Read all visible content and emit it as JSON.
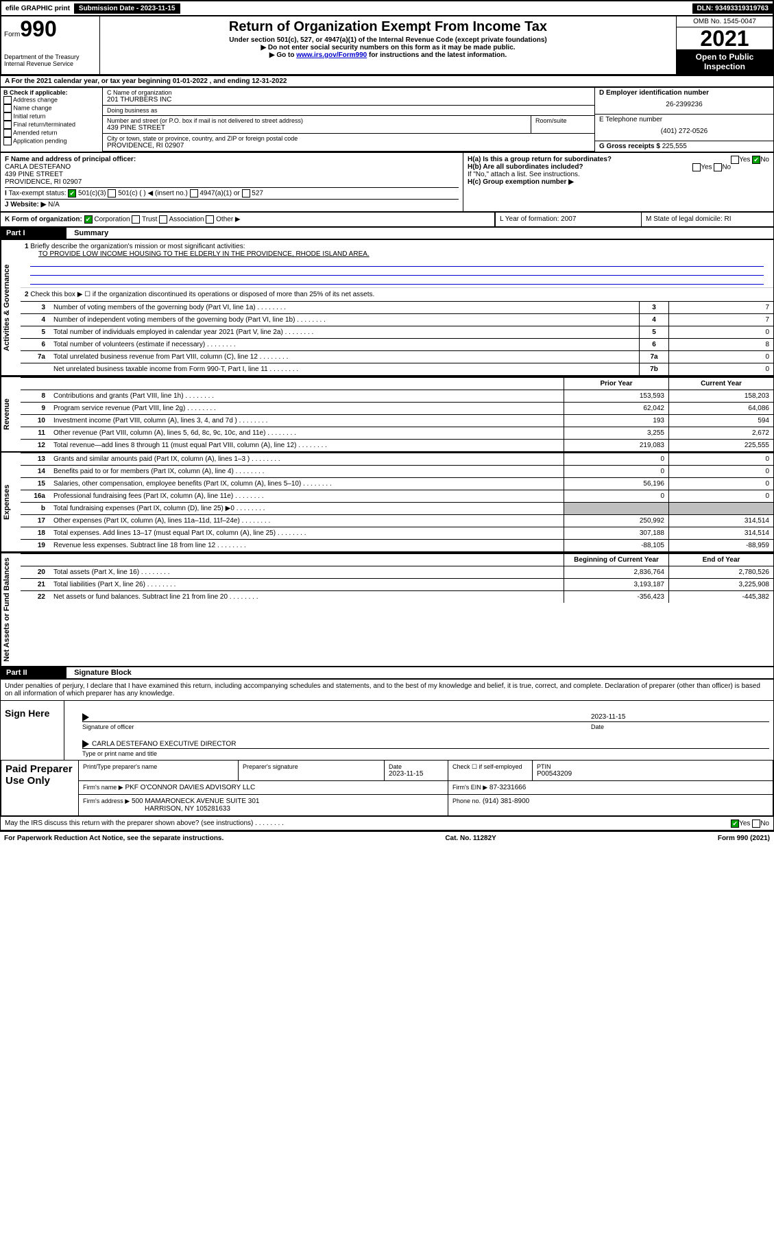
{
  "topbar": {
    "efile": "efile GRAPHIC print",
    "submission": "Submission Date - 2023-11-15",
    "dln": "DLN: 93493319319763"
  },
  "header": {
    "form_prefix": "Form",
    "form_num": "990",
    "dept": "Department of the Treasury Internal Revenue Service",
    "title": "Return of Organization Exempt From Income Tax",
    "sub1": "Under section 501(c), 527, or 4947(a)(1) of the Internal Revenue Code (except private foundations)",
    "sub2": "▶ Do not enter social security numbers on this form as it may be made public.",
    "sub3_pre": "▶ Go to ",
    "sub3_link": "www.irs.gov/Form990",
    "sub3_post": " for instructions and the latest information.",
    "omb": "OMB No. 1545-0047",
    "year": "2021",
    "open": "Open to Public Inspection"
  },
  "rowA": "A For the 2021 calendar year, or tax year beginning 01-01-2022   , and ending 12-31-2022",
  "checkB": {
    "title": "B Check if applicable:",
    "opts": [
      "Address change",
      "Name change",
      "Initial return",
      "Final return/terminated",
      "Amended return",
      "Application pending"
    ]
  },
  "colC": {
    "name_label": "C Name of organization",
    "name": "201 THURBERS INC",
    "dba_label": "Doing business as",
    "dba": "",
    "addr_label": "Number and street (or P.O. box if mail is not delivered to street address)",
    "room_label": "Room/suite",
    "addr": "439 PINE STREET",
    "city_label": "City or town, state or province, country, and ZIP or foreign postal code",
    "city": "PROVIDENCE, RI  02907"
  },
  "colD": {
    "d_label": "D Employer identification number",
    "d_val": "26-2399236",
    "e_label": "E Telephone number",
    "e_val": "(401) 272-0526",
    "g_label": "G Gross receipts $",
    "g_val": "225,555"
  },
  "rowF": {
    "f_label": "F Name and address of principal officer:",
    "f_name": "CARLA DESTEFANO",
    "f_addr1": "439 PINE STREET",
    "f_addr2": "PROVIDENCE, RI  02907",
    "ha": "H(a)  Is this a group return for subordinates?",
    "hb": "H(b)  Are all subordinates included?",
    "hb_note": "If \"No,\" attach a list. See instructions.",
    "hc": "H(c)  Group exemption number ▶"
  },
  "rowI": {
    "label": "Tax-exempt status:",
    "opts": [
      "501(c)(3)",
      "501(c) (  ) ◀ (insert no.)",
      "4947(a)(1) or",
      "527"
    ]
  },
  "rowJ": {
    "label": "J  Website: ▶",
    "val": "N/A"
  },
  "rowK": {
    "label": "K Form of organization:",
    "opts": [
      "Corporation",
      "Trust",
      "Association",
      "Other ▶"
    ],
    "l": "L Year of formation: 2007",
    "m": "M State of legal domicile: RI"
  },
  "part1": {
    "header": "Part I",
    "title": "Summary",
    "line1": "Briefly describe the organization's mission or most significant activities:",
    "mission": "TO PROVIDE LOW INCOME HOUSING TO THE ELDERLY IN THE PROVIDENCE, RHODE ISLAND AREA.",
    "line2": "Check this box ▶ ☐ if the organization discontinued its operations or disposed of more than 25% of its net assets.",
    "sections": {
      "gov": "Activities & Governance",
      "rev": "Revenue",
      "exp": "Expenses",
      "net": "Net Assets or Fund Balances"
    },
    "col_prior": "Prior Year",
    "col_curr": "Current Year",
    "col_boy": "Beginning of Current Year",
    "col_eoy": "End of Year",
    "lines_gov": [
      {
        "n": "3",
        "t": "Number of voting members of the governing body (Part VI, line 1a)",
        "box": "3",
        "v": "7"
      },
      {
        "n": "4",
        "t": "Number of independent voting members of the governing body (Part VI, line 1b)",
        "box": "4",
        "v": "7"
      },
      {
        "n": "5",
        "t": "Total number of individuals employed in calendar year 2021 (Part V, line 2a)",
        "box": "5",
        "v": "0"
      },
      {
        "n": "6",
        "t": "Total number of volunteers (estimate if necessary)",
        "box": "6",
        "v": "8"
      },
      {
        "n": "7a",
        "t": "Total unrelated business revenue from Part VIII, column (C), line 12",
        "box": "7a",
        "v": "0"
      },
      {
        "n": "",
        "t": "Net unrelated business taxable income from Form 990-T, Part I, line 11",
        "box": "7b",
        "v": "0"
      }
    ],
    "lines_rev": [
      {
        "n": "8",
        "t": "Contributions and grants (Part VIII, line 1h)",
        "p": "153,593",
        "c": "158,203"
      },
      {
        "n": "9",
        "t": "Program service revenue (Part VIII, line 2g)",
        "p": "62,042",
        "c": "64,086"
      },
      {
        "n": "10",
        "t": "Investment income (Part VIII, column (A), lines 3, 4, and 7d )",
        "p": "193",
        "c": "594"
      },
      {
        "n": "11",
        "t": "Other revenue (Part VIII, column (A), lines 5, 6d, 8c, 9c, 10c, and 11e)",
        "p": "3,255",
        "c": "2,672"
      },
      {
        "n": "12",
        "t": "Total revenue—add lines 8 through 11 (must equal Part VIII, column (A), line 12)",
        "p": "219,083",
        "c": "225,555"
      }
    ],
    "lines_exp": [
      {
        "n": "13",
        "t": "Grants and similar amounts paid (Part IX, column (A), lines 1–3 )",
        "p": "0",
        "c": "0"
      },
      {
        "n": "14",
        "t": "Benefits paid to or for members (Part IX, column (A), line 4)",
        "p": "0",
        "c": "0"
      },
      {
        "n": "15",
        "t": "Salaries, other compensation, employee benefits (Part IX, column (A), lines 5–10)",
        "p": "56,196",
        "c": "0"
      },
      {
        "n": "16a",
        "t": "Professional fundraising fees (Part IX, column (A), line 11e)",
        "p": "0",
        "c": "0"
      },
      {
        "n": "b",
        "t": "Total fundraising expenses (Part IX, column (D), line 25) ▶0",
        "p": "",
        "c": "",
        "shaded": true
      },
      {
        "n": "17",
        "t": "Other expenses (Part IX, column (A), lines 11a–11d, 11f–24e)",
        "p": "250,992",
        "c": "314,514"
      },
      {
        "n": "18",
        "t": "Total expenses. Add lines 13–17 (must equal Part IX, column (A), line 25)",
        "p": "307,188",
        "c": "314,514"
      },
      {
        "n": "19",
        "t": "Revenue less expenses. Subtract line 18 from line 12",
        "p": "-88,105",
        "c": "-88,959"
      }
    ],
    "lines_net": [
      {
        "n": "20",
        "t": "Total assets (Part X, line 16)",
        "p": "2,836,764",
        "c": "2,780,526"
      },
      {
        "n": "21",
        "t": "Total liabilities (Part X, line 26)",
        "p": "3,193,187",
        "c": "3,225,908"
      },
      {
        "n": "22",
        "t": "Net assets or fund balances. Subtract line 21 from line 20",
        "p": "-356,423",
        "c": "-445,382"
      }
    ]
  },
  "part2": {
    "header": "Part II",
    "title": "Signature Block",
    "declaration": "Under penalties of perjury, I declare that I have examined this return, including accompanying schedules and statements, and to the best of my knowledge and belief, it is true, correct, and complete. Declaration of preparer (other than officer) is based on all information of which preparer has any knowledge.",
    "sign_here": "Sign Here",
    "sig_officer": "Signature of officer",
    "sig_date": "2023-11-15",
    "date_label": "Date",
    "officer_name": "CARLA DESTEFANO  EXECUTIVE DIRECTOR",
    "type_name": "Type or print name and title",
    "paid": "Paid Preparer Use Only",
    "prep_name_label": "Print/Type preparer's name",
    "prep_sig_label": "Preparer's signature",
    "prep_date_label": "Date",
    "prep_date": "2023-11-15",
    "check_label": "Check ☐ if self-employed",
    "ptin_label": "PTIN",
    "ptin": "P00543209",
    "firm_name_label": "Firm's name    ▶",
    "firm_name": "PKF O'CONNOR DAVIES ADVISORY LLC",
    "firm_ein_label": "Firm's EIN ▶",
    "firm_ein": "87-3231666",
    "firm_addr_label": "Firm's address ▶",
    "firm_addr1": "500 MAMARONECK AVENUE SUITE 301",
    "firm_addr2": "HARRISON, NY 105281633",
    "phone_label": "Phone no.",
    "phone": "(914) 381-8900",
    "discuss": "May the IRS discuss this return with the preparer shown above? (see instructions)",
    "yes": "Yes",
    "no": "No"
  },
  "footer": {
    "left": "For Paperwork Reduction Act Notice, see the separate instructions.",
    "mid": "Cat. No. 11282Y",
    "right": "Form 990 (2021)"
  }
}
